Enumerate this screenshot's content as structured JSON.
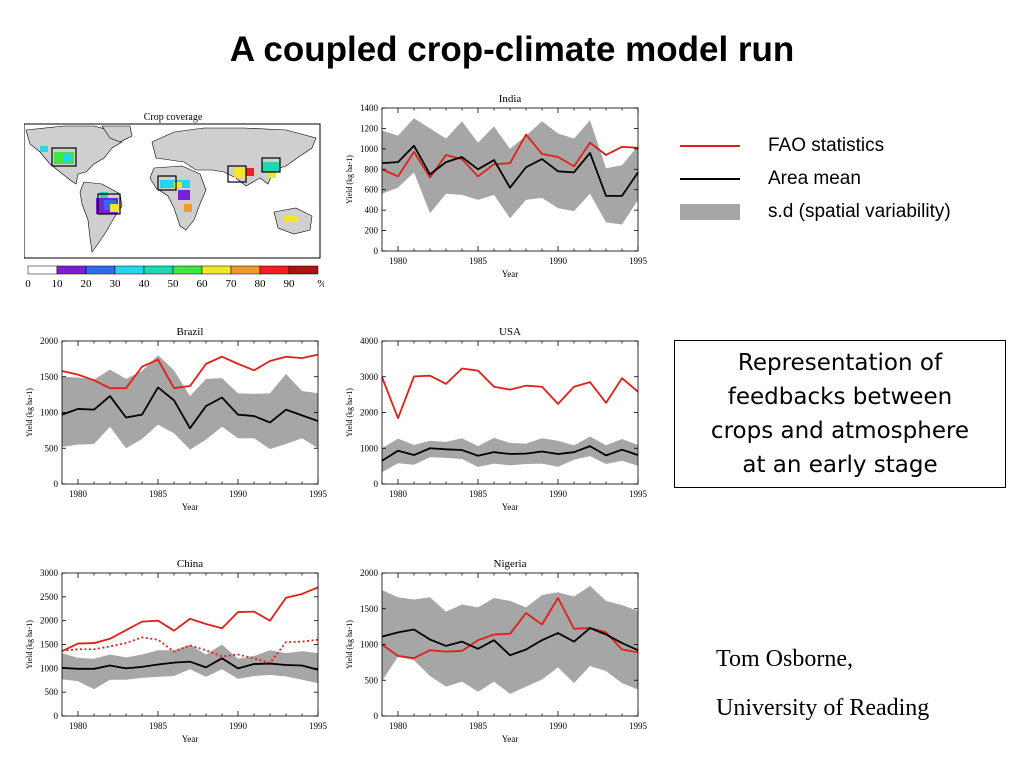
{
  "slide": {
    "title": "A coupled crop-climate model run",
    "legend": [
      {
        "label": "FAO statistics",
        "color": "#e02018",
        "kind": "line"
      },
      {
        "label": "Area mean",
        "color": "#000000",
        "kind": "line"
      },
      {
        "label": "s.d (spatial variability)",
        "color": "#a6a6a6",
        "kind": "band"
      }
    ],
    "note_lines": [
      "Representation of",
      "feedbacks between",
      "crops and atmosphere",
      "at an early stage"
    ],
    "credit_name": "Tom Osborne,",
    "credit_affiliation": "University of Reading"
  },
  "map": {
    "title": "Crop coverage",
    "colorbar_ticks": [
      "0",
      "10",
      "20",
      "30",
      "40",
      "50",
      "60",
      "70",
      "80",
      "90",
      "%"
    ],
    "colorbar_colors": [
      "#ffffff",
      "#7a1fd6",
      "#2f6bf0",
      "#27d4f0",
      "#21d6b0",
      "#3ee63e",
      "#f0e62b",
      "#f09a2b",
      "#f02020",
      "#b01010"
    ]
  },
  "chart_data": [
    {
      "type": "line",
      "title": "India",
      "xlabel": "Year",
      "ylabel": "Yield (kg ha-1)",
      "xlim": [
        1979,
        1995
      ],
      "ylim": [
        0,
        1400
      ],
      "xticks": [
        1980,
        1985,
        1990,
        1995
      ],
      "yticks": [
        0,
        200,
        400,
        600,
        800,
        1000,
        1200,
        1400
      ],
      "x": [
        1979,
        1980,
        1981,
        1982,
        1983,
        1984,
        1985,
        1986,
        1987,
        1988,
        1989,
        1990,
        1991,
        1992,
        1993,
        1994,
        1995
      ],
      "series": [
        {
          "name": "FAO statistics",
          "color": "#e02018",
          "style": "solid",
          "values": [
            800,
            730,
            970,
            720,
            940,
            900,
            730,
            850,
            860,
            1140,
            950,
            920,
            830,
            1060,
            940,
            1020,
            1010
          ]
        },
        {
          "name": "Area mean",
          "color": "#000000",
          "style": "solid",
          "values": [
            860,
            870,
            1030,
            750,
            870,
            920,
            800,
            890,
            620,
            820,
            900,
            780,
            770,
            960,
            540,
            540,
            770
          ]
        }
      ],
      "band_upper": [
        1180,
        1130,
        1300,
        1200,
        1100,
        1270,
        1060,
        1220,
        1000,
        1130,
        1270,
        1150,
        1100,
        1280,
        810,
        840,
        1030
      ],
      "band_lower": [
        560,
        620,
        770,
        370,
        560,
        550,
        500,
        550,
        320,
        500,
        520,
        420,
        390,
        560,
        280,
        260,
        500
      ],
      "band_color": "#a6a6a6"
    },
    {
      "type": "line",
      "title": "Brazil",
      "xlabel": "Year",
      "ylabel": "Yield (kg ha-1)",
      "xlim": [
        1979,
        1995
      ],
      "ylim": [
        0,
        2000
      ],
      "xticks": [
        1980,
        1985,
        1990,
        1995
      ],
      "yticks": [
        0,
        500,
        1000,
        1500,
        2000
      ],
      "x": [
        1979,
        1980,
        1981,
        1982,
        1983,
        1984,
        1985,
        1986,
        1987,
        1988,
        1989,
        1990,
        1991,
        1992,
        1993,
        1994,
        1995
      ],
      "series": [
        {
          "name": "FAO statistics",
          "color": "#e02018",
          "style": "solid",
          "values": [
            1580,
            1530,
            1450,
            1340,
            1340,
            1640,
            1740,
            1340,
            1370,
            1680,
            1780,
            1680,
            1590,
            1720,
            1780,
            1760,
            1810
          ]
        },
        {
          "name": "Area mean",
          "color": "#000000",
          "style": "solid",
          "values": [
            970,
            1050,
            1040,
            1230,
            930,
            970,
            1350,
            1170,
            780,
            1090,
            1210,
            970,
            950,
            860,
            1040,
            960,
            880
          ]
        }
      ],
      "band_upper": [
        1500,
        1490,
        1460,
        1600,
        1470,
        1580,
        1800,
        1590,
        1230,
        1470,
        1480,
        1270,
        1260,
        1270,
        1540,
        1300,
        1270
      ],
      "band_lower": [
        520,
        550,
        560,
        800,
        500,
        630,
        830,
        710,
        480,
        620,
        800,
        640,
        640,
        490,
        560,
        640,
        500
      ],
      "band_color": "#a6a6a6"
    },
    {
      "type": "line",
      "title": "USA",
      "xlabel": "Year",
      "ylabel": "Yield (kg ha-1)",
      "xlim": [
        1979,
        1995
      ],
      "ylim": [
        0,
        4000
      ],
      "xticks": [
        1980,
        1985,
        1990,
        1995
      ],
      "yticks": [
        0,
        1000,
        2000,
        3000,
        4000
      ],
      "x": [
        1979,
        1980,
        1981,
        1982,
        1983,
        1984,
        1985,
        1986,
        1987,
        1988,
        1989,
        1990,
        1991,
        1992,
        1993,
        1994,
        1995
      ],
      "series": [
        {
          "name": "FAO statistics",
          "color": "#e02018",
          "style": "solid",
          "values": [
            2990,
            1840,
            3010,
            3030,
            2800,
            3230,
            3170,
            2720,
            2640,
            2750,
            2720,
            2240,
            2720,
            2850,
            2270,
            2960,
            2580
          ]
        },
        {
          "name": "Area mean",
          "color": "#000000",
          "style": "solid",
          "values": [
            650,
            930,
            810,
            1000,
            970,
            950,
            790,
            890,
            840,
            850,
            910,
            840,
            890,
            1060,
            800,
            960,
            810
          ]
        }
      ],
      "band_upper": [
        1000,
        1270,
        1090,
        1210,
        1180,
        1280,
        1060,
        1290,
        1150,
        1130,
        1280,
        1210,
        1080,
        1330,
        1080,
        1260,
        1090
      ],
      "band_lower": [
        330,
        580,
        540,
        750,
        730,
        700,
        480,
        570,
        520,
        560,
        570,
        480,
        680,
        780,
        560,
        650,
        510
      ],
      "band_color": "#a6a6a6"
    },
    {
      "type": "line",
      "title": "China",
      "xlabel": "Year",
      "ylabel": "Yield (kg ha-1)",
      "xlim": [
        1979,
        1995
      ],
      "ylim": [
        0,
        3000
      ],
      "xticks": [
        1980,
        1985,
        1990,
        1995
      ],
      "yticks": [
        0,
        500,
        1000,
        1500,
        2000,
        2500,
        3000
      ],
      "x": [
        1979,
        1980,
        1981,
        1982,
        1983,
        1984,
        1985,
        1986,
        1987,
        1988,
        1989,
        1990,
        1991,
        1992,
        1993,
        1994,
        1995
      ],
      "series": [
        {
          "name": "FAO statistics",
          "color": "#e02018",
          "style": "solid",
          "values": [
            1360,
            1520,
            1530,
            1620,
            1800,
            1980,
            2000,
            1790,
            2040,
            1930,
            1840,
            2180,
            2190,
            2000,
            2480,
            2560,
            2700
          ]
        },
        {
          "name": "FAO statistics (dotted)",
          "color": "#e02018",
          "style": "dotted",
          "values": [
            1370,
            1400,
            1400,
            1460,
            1530,
            1650,
            1600,
            1350,
            1480,
            1380,
            1250,
            1290,
            1210,
            1110,
            1550,
            1560,
            1600
          ]
        },
        {
          "name": "Area mean",
          "color": "#000000",
          "style": "solid",
          "values": [
            1010,
            990,
            990,
            1060,
            1000,
            1030,
            1080,
            1120,
            1140,
            1020,
            1210,
            1000,
            1090,
            1100,
            1070,
            1060,
            970
          ]
        }
      ],
      "band_upper": [
        1320,
        1220,
        1200,
        1290,
        1230,
        1290,
        1380,
        1380,
        1500,
        1290,
        1500,
        1200,
        1260,
        1380,
        1320,
        1360,
        1320
      ],
      "band_lower": [
        770,
        730,
        560,
        760,
        760,
        800,
        820,
        840,
        980,
        820,
        980,
        780,
        840,
        860,
        830,
        760,
        690
      ],
      "band_color": "#a6a6a6"
    },
    {
      "type": "line",
      "title": "Nigeria",
      "xlabel": "Year",
      "ylabel": "Yield (kg ha-1)",
      "xlim": [
        1979,
        1995
      ],
      "ylim": [
        0,
        2000
      ],
      "xticks": [
        1980,
        1985,
        1990,
        1995
      ],
      "yticks": [
        0,
        500,
        1000,
        1500,
        2000
      ],
      "x": [
        1979,
        1980,
        1981,
        1982,
        1983,
        1984,
        1985,
        1986,
        1987,
        1988,
        1989,
        1990,
        1991,
        1992,
        1993,
        1994,
        1995
      ],
      "series": [
        {
          "name": "FAO statistics",
          "color": "#e02018",
          "style": "solid",
          "values": [
            1000,
            840,
            810,
            920,
            900,
            910,
            1060,
            1140,
            1150,
            1440,
            1280,
            1650,
            1220,
            1230,
            1170,
            930,
            890
          ]
        },
        {
          "name": "Area mean",
          "color": "#000000",
          "style": "solid",
          "values": [
            1110,
            1170,
            1210,
            1070,
            980,
            1040,
            940,
            1060,
            850,
            930,
            1060,
            1160,
            1040,
            1230,
            1140,
            1020,
            920
          ]
        }
      ],
      "band_upper": [
        1760,
        1660,
        1630,
        1660,
        1460,
        1560,
        1520,
        1650,
        1610,
        1520,
        1690,
        1730,
        1670,
        1820,
        1610,
        1550,
        1470
      ],
      "band_lower": [
        490,
        830,
        780,
        560,
        410,
        480,
        340,
        480,
        310,
        410,
        510,
        680,
        460,
        700,
        630,
        460,
        370
      ],
      "band_color": "#a6a6a6"
    }
  ]
}
